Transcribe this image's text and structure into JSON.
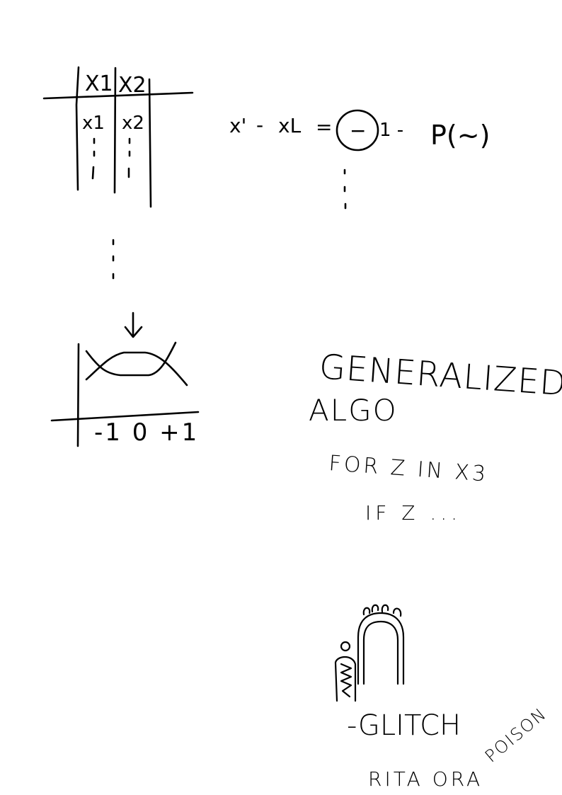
{
  "canvas": {
    "background": "#ffffff",
    "ink_color": "#000000"
  },
  "table_sketch": {
    "headers": [
      "X1",
      "X2"
    ],
    "row_values": [
      "x1",
      "x2"
    ],
    "ellipsis_marks": [
      ":",
      ":"
    ]
  },
  "equation": {
    "left_a": "x'",
    "minus": "-",
    "left_b": "xL",
    "equals": "=",
    "circled": "−",
    "trail": "1 -",
    "probability": "P(~)",
    "continuation": ":"
  },
  "vertical_ellipsis": ":",
  "arrow_icon": "down-arrow-icon",
  "plot_sketch": {
    "axis_labels": "-1 0 +1"
  },
  "notes": {
    "title_line1": "GENERALIZED",
    "title_line2": "ALGO",
    "code_line1": "FOR Z IN X3",
    "code_line2": "IF Z ..."
  },
  "doodle": {
    "caption": "-GLITCH",
    "signature": "RITA ORA",
    "signature_tail": "POISON"
  }
}
